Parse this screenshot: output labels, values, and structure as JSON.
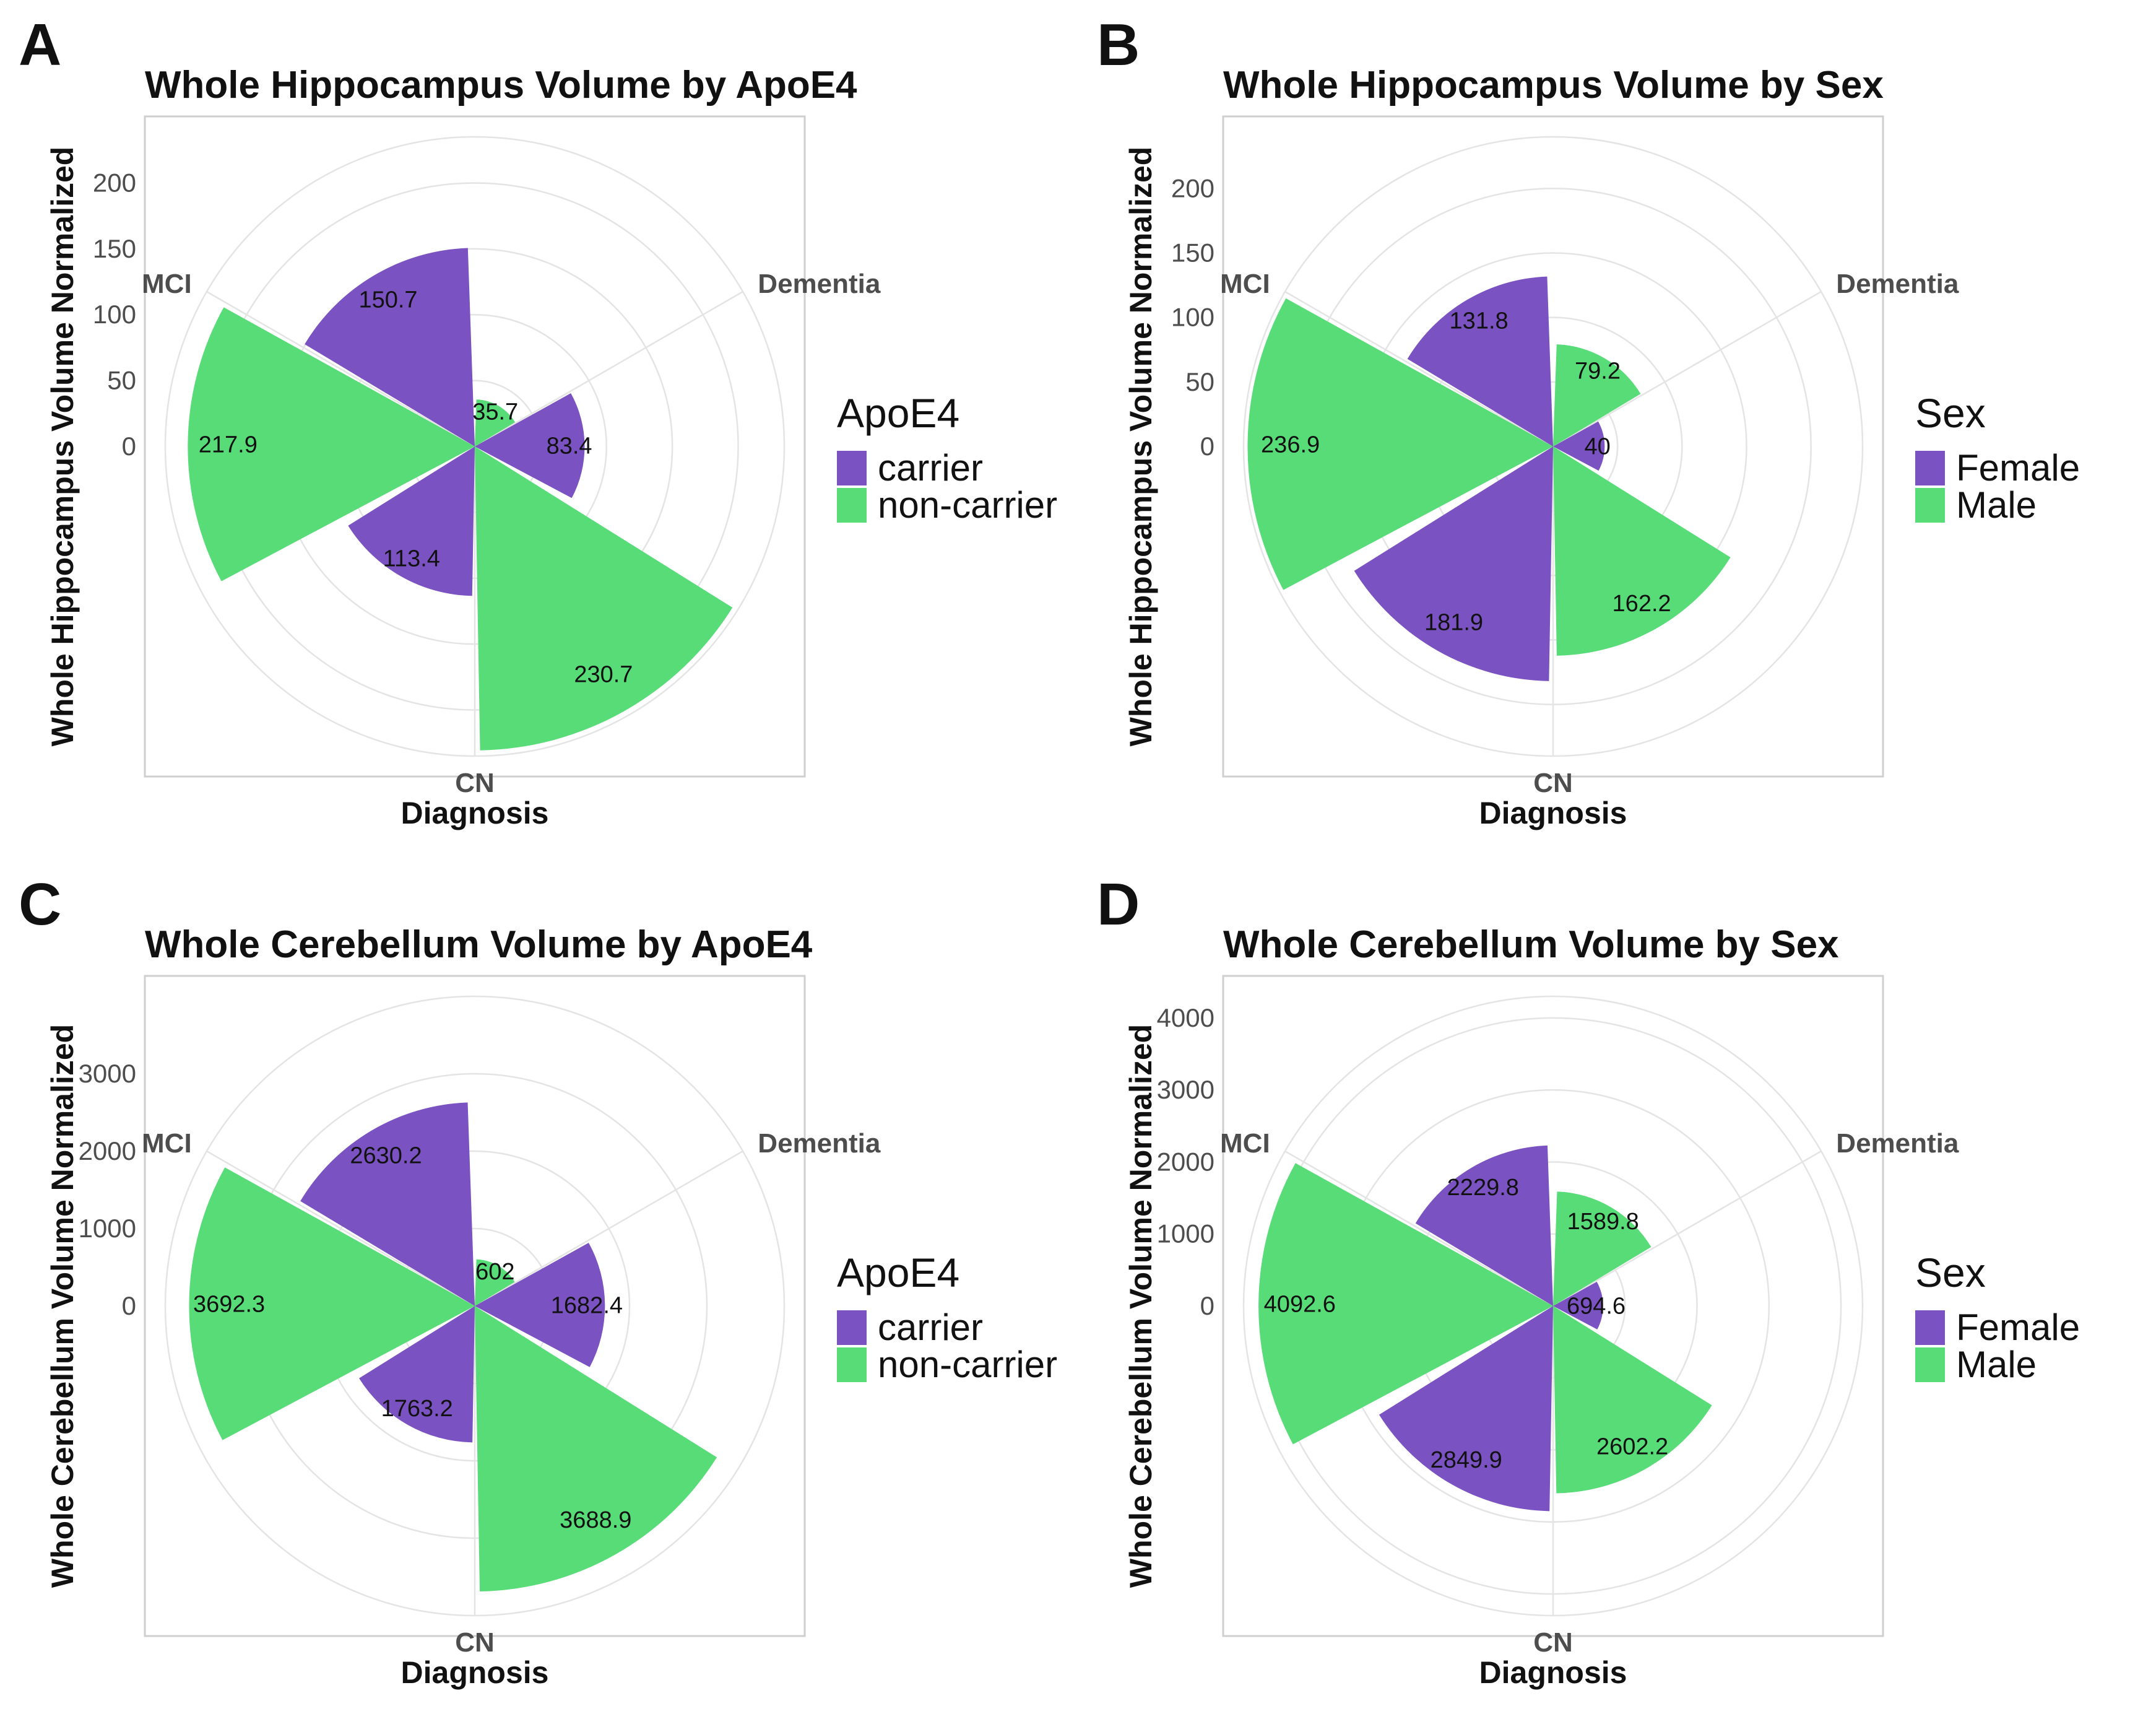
{
  "figure": {
    "colors": {
      "carrier": "#7b52c1",
      "non_carrier": "#58dc78",
      "female": "#7b52c1",
      "male": "#58dc78"
    }
  },
  "chart_data": [
    {
      "panel": "A",
      "type": "polar-bar",
      "title": "Whole Hippocampus Volume by ApoE4",
      "xlabel": "Diagnosis",
      "ylabel": "Whole Hippocampus Volume Normalized",
      "yticks": [
        0,
        50,
        100,
        150,
        200
      ],
      "ylim": [
        0,
        235
      ],
      "categories": [
        "CN",
        "MCI",
        "Dementia"
      ],
      "legend": {
        "title": "ApoE4",
        "position": "right"
      },
      "series": [
        {
          "name": "carrier",
          "color": "#7b52c1",
          "values": [
            113.4,
            150.7,
            83.4
          ],
          "labels": [
            "113.4",
            "150.7",
            "83.4"
          ]
        },
        {
          "name": "non-carrier",
          "color": "#58dc78",
          "values": [
            230.7,
            217.9,
            35.7
          ],
          "labels": [
            "230.7",
            "217.9",
            "35.7"
          ]
        }
      ]
    },
    {
      "panel": "B",
      "type": "polar-bar",
      "title": "Whole Hippocampus Volume by Sex",
      "xlabel": "Diagnosis",
      "ylabel": "Whole Hippocampus Volume Normalized",
      "yticks": [
        0,
        50,
        100,
        150,
        200
      ],
      "ylim": [
        0,
        240
      ],
      "categories": [
        "CN",
        "MCI",
        "Dementia"
      ],
      "legend": {
        "title": "Sex",
        "position": "right"
      },
      "series": [
        {
          "name": "Female",
          "color": "#7b52c1",
          "values": [
            181.9,
            131.8,
            40
          ],
          "labels": [
            "181.9",
            "131.8",
            "40"
          ]
        },
        {
          "name": "Male",
          "color": "#58dc78",
          "values": [
            162.2,
            236.9,
            79.2
          ],
          "labels": [
            "162.2",
            "236.9",
            "79.2"
          ]
        }
      ]
    },
    {
      "panel": "C",
      "type": "polar-bar",
      "title": "Whole Cerebellum Volume by ApoE4",
      "xlabel": "Diagnosis",
      "ylabel": "Whole Cerebellum Volume Normalized",
      "yticks": [
        0,
        1000,
        2000,
        3000
      ],
      "ylim": [
        0,
        4000
      ],
      "categories": [
        "CN",
        "MCI",
        "Dementia"
      ],
      "legend": {
        "title": "ApoE4",
        "position": "right"
      },
      "series": [
        {
          "name": "carrier",
          "color": "#7b52c1",
          "values": [
            1763.2,
            2630.2,
            1682.4
          ],
          "labels": [
            "1763.2",
            "2630.2",
            "1682.4"
          ]
        },
        {
          "name": "non-carrier",
          "color": "#58dc78",
          "values": [
            3688.9,
            3692.3,
            602
          ],
          "labels": [
            "3688.9",
            "3692.3",
            "602"
          ]
        }
      ]
    },
    {
      "panel": "D",
      "type": "polar-bar",
      "title": "Whole Cerebellum Volume by Sex",
      "xlabel": "Diagnosis",
      "ylabel": "Whole Cerebellum Volume Normalized",
      "yticks": [
        0,
        1000,
        2000,
        3000,
        4000
      ],
      "ylim": [
        0,
        4300
      ],
      "categories": [
        "CN",
        "MCI",
        "Dementia"
      ],
      "legend": {
        "title": "Sex",
        "position": "right"
      },
      "series": [
        {
          "name": "Female",
          "color": "#7b52c1",
          "values": [
            2849.9,
            2229.8,
            694.6
          ],
          "labels": [
            "2849.9",
            "2229.8",
            "694.6"
          ]
        },
        {
          "name": "Male",
          "color": "#58dc78",
          "values": [
            2602.2,
            4092.6,
            1589.8
          ],
          "labels": [
            "2602.2",
            "4092.6",
            "1589.8"
          ]
        }
      ]
    }
  ]
}
